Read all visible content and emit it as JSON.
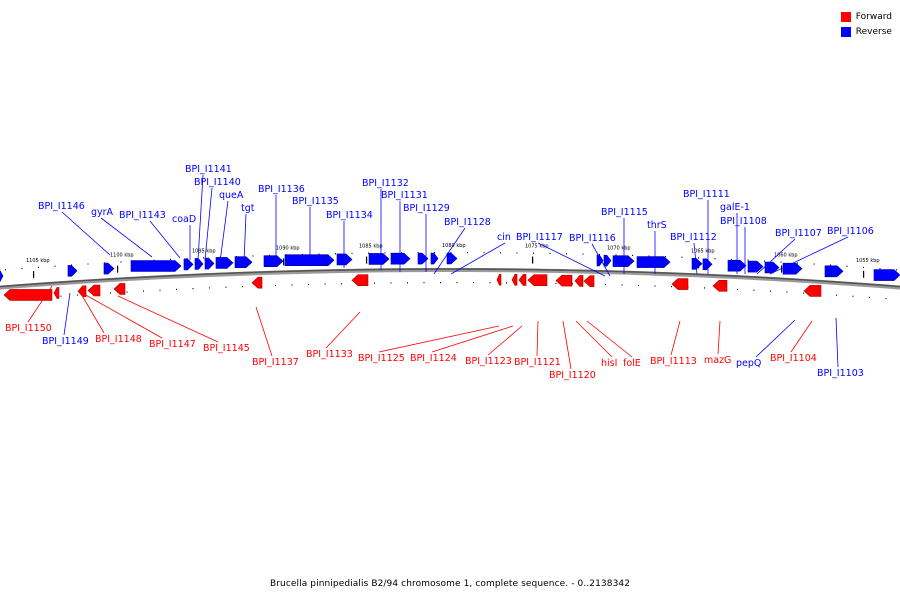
{
  "colors": {
    "forward": "#ff0000",
    "reverse": "#0000ff",
    "forward_dark": "#b00000",
    "reverse_dark": "#0000a0"
  },
  "legend": {
    "forward": "Forward",
    "reverse": "Reverse"
  },
  "caption": "Brucella pinnipedialis B2/94 chromosome 1, complete sequence. - 0..2138342",
  "scale_ticks": [
    "1105 kbp",
    "1100 kbp",
    "1095 kbp",
    "1090 kbp",
    "1085 kbp",
    "1080 kbp",
    "1075 kbp",
    "1070 kbp",
    "1065 kbp",
    "1060 kbp",
    "1055 kbp"
  ],
  "reverse_genes": [
    "BPI_I1146",
    "gyrA",
    "BPI_I1143",
    "coaD",
    "BPI_I1141",
    "BPI_I1140",
    "queA",
    "tgt",
    "BPI_I1136",
    "BPI_I1135",
    "BPI_I1134",
    "BPI_I1132",
    "BPI_I1131",
    "BPI_I1129",
    "BPI_I1128",
    "cin",
    "BPI_I1117",
    "BPI_I1116",
    "BPI_I1115",
    "thrS",
    "BPI_I1112",
    "BPI_I1111",
    "galE-1",
    "BPI_I1108",
    "BPI_I1107",
    "BPI_I1106",
    "BPI_I1149",
    "pepQ",
    "BPI_I1103"
  ],
  "forward_genes": [
    "BPI_I1150",
    "BPI_I1148",
    "BPI_I1147",
    "BPI_I1145",
    "BPI_I1137",
    "BPI_I1133",
    "BPI_I1125",
    "BPI_I1124",
    "BPI_I1123",
    "BPI_I1121",
    "BPI_I1120",
    "hisI",
    "folE",
    "BPI_I1113",
    "mazG",
    "BPI_I1104"
  ]
}
